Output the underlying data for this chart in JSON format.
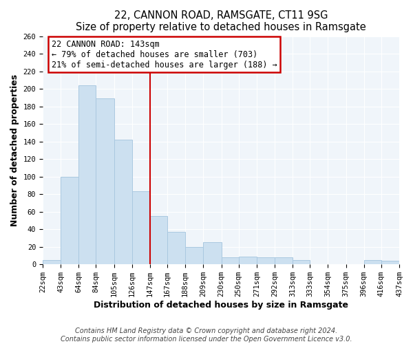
{
  "title": "22, CANNON ROAD, RAMSGATE, CT11 9SG",
  "subtitle": "Size of property relative to detached houses in Ramsgate",
  "xlabel": "Distribution of detached houses by size in Ramsgate",
  "ylabel": "Number of detached properties",
  "bar_color": "#cce0f0",
  "bar_edge_color": "#aac8e0",
  "bin_edges": [
    22,
    43,
    64,
    84,
    105,
    126,
    147,
    167,
    188,
    209,
    230,
    250,
    271,
    292,
    313,
    333,
    354,
    375,
    396,
    416,
    437
  ],
  "bar_heights": [
    5,
    100,
    204,
    189,
    142,
    83,
    55,
    37,
    20,
    25,
    8,
    9,
    8,
    8,
    5,
    0,
    0,
    0,
    5,
    4
  ],
  "tick_labels": [
    "22sqm",
    "43sqm",
    "64sqm",
    "84sqm",
    "105sqm",
    "126sqm",
    "147sqm",
    "167sqm",
    "188sqm",
    "209sqm",
    "230sqm",
    "250sqm",
    "271sqm",
    "292sqm",
    "313sqm",
    "333sqm",
    "354sqm",
    "375sqm",
    "396sqm",
    "416sqm",
    "437sqm"
  ],
  "property_line_x": 147,
  "property_line_color": "#cc0000",
  "annotation_title": "22 CANNON ROAD: 143sqm",
  "annotation_line1": "← 79% of detached houses are smaller (703)",
  "annotation_line2": "21% of semi-detached houses are larger (188) →",
  "annotation_box_color": "#ffffff",
  "annotation_box_edge_color": "#cc0000",
  "ylim": [
    0,
    260
  ],
  "footer1": "Contains HM Land Registry data © Crown copyright and database right 2024.",
  "footer2": "Contains public sector information licensed under the Open Government Licence v3.0.",
  "background_color": "#ffffff",
  "plot_bg_color": "#f0f5fa",
  "grid_color": "#ffffff",
  "title_fontsize": 10.5,
  "subtitle_fontsize": 9.5,
  "axis_label_fontsize": 9,
  "tick_fontsize": 7.5,
  "footer_fontsize": 7
}
